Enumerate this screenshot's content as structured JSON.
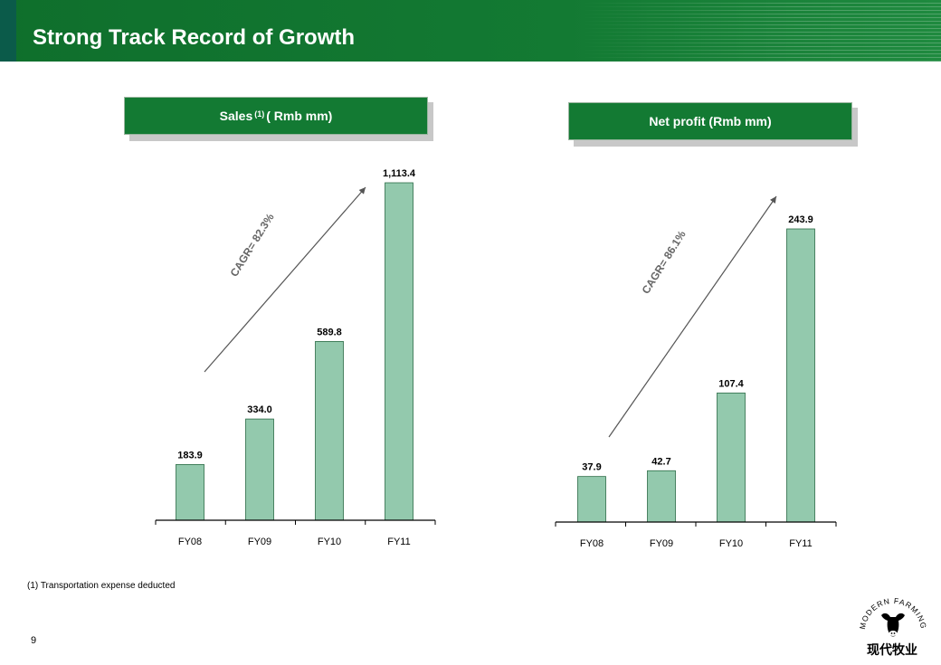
{
  "header": {
    "title": "Strong Track Record of Growth"
  },
  "footnote": "(1) Transportation expense deducted",
  "page_number": "9",
  "logo": {
    "arc_text": "MODERN FARMING",
    "chinese_name": "现代牧业",
    "icon": "cow-head-icon"
  },
  "colors": {
    "header_green": "#137a33",
    "bar_fill": "#93c9ad",
    "bar_stroke": "#2b6b45",
    "arrow": "#555555"
  },
  "charts": {
    "sales": {
      "header_main": "Sales",
      "header_sup": "(1)",
      "header_rest": "( Rmb mm)"
    },
    "profit": {
      "header": "Net profit (Rmb mm)"
    }
  },
  "chart_data": [
    {
      "type": "bar",
      "categories": [
        "FY08",
        "FY09",
        "FY10",
        "FY11"
      ],
      "values": [
        183.9,
        334.0,
        589.8,
        1113.4
      ],
      "labels": [
        "183.9",
        "334.0",
        "589.8",
        "1,113.4"
      ],
      "title": "Sales (1) ( Rmb mm)",
      "annotation": "CAGR= 82.3%",
      "ylim": [
        0,
        1113.4
      ]
    },
    {
      "type": "bar",
      "categories": [
        "FY08",
        "FY09",
        "FY10",
        "FY11"
      ],
      "values": [
        37.9,
        42.7,
        107.4,
        243.9
      ],
      "labels": [
        "37.9",
        "42.7",
        "107.4",
        "243.9"
      ],
      "title": "Net profit (Rmb mm)",
      "annotation": "CAGR= 86.1%",
      "ylim": [
        0,
        243.9
      ]
    }
  ]
}
